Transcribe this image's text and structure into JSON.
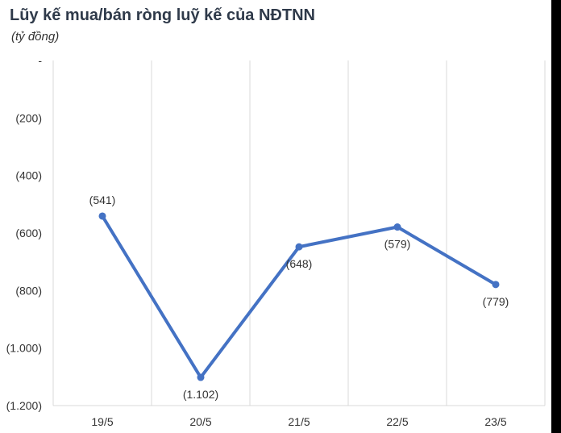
{
  "chart_data": {
    "type": "line",
    "title": "Lũy kế mua/bán ròng luỹ kế của NĐTNN",
    "subtitle": "(tỷ đồng)",
    "categories": [
      "19/5",
      "20/5",
      "21/5",
      "22/5",
      "23/5"
    ],
    "values": [
      -541,
      -1102,
      -648,
      -579,
      -779
    ],
    "data_labels": [
      "(541)",
      "(1.102)",
      "(648)",
      "(579)",
      "(779)"
    ],
    "ylim": [
      -1200,
      0
    ],
    "y_ticks": [
      0,
      -200,
      -400,
      -600,
      -800,
      -1000,
      -1200
    ],
    "y_tick_labels": [
      "-",
      "(200)",
      "(400)",
      "(600)",
      "(800)",
      "(1.000)",
      "(1.200)"
    ],
    "grid": "vertical",
    "line_color": "#4472c4"
  }
}
